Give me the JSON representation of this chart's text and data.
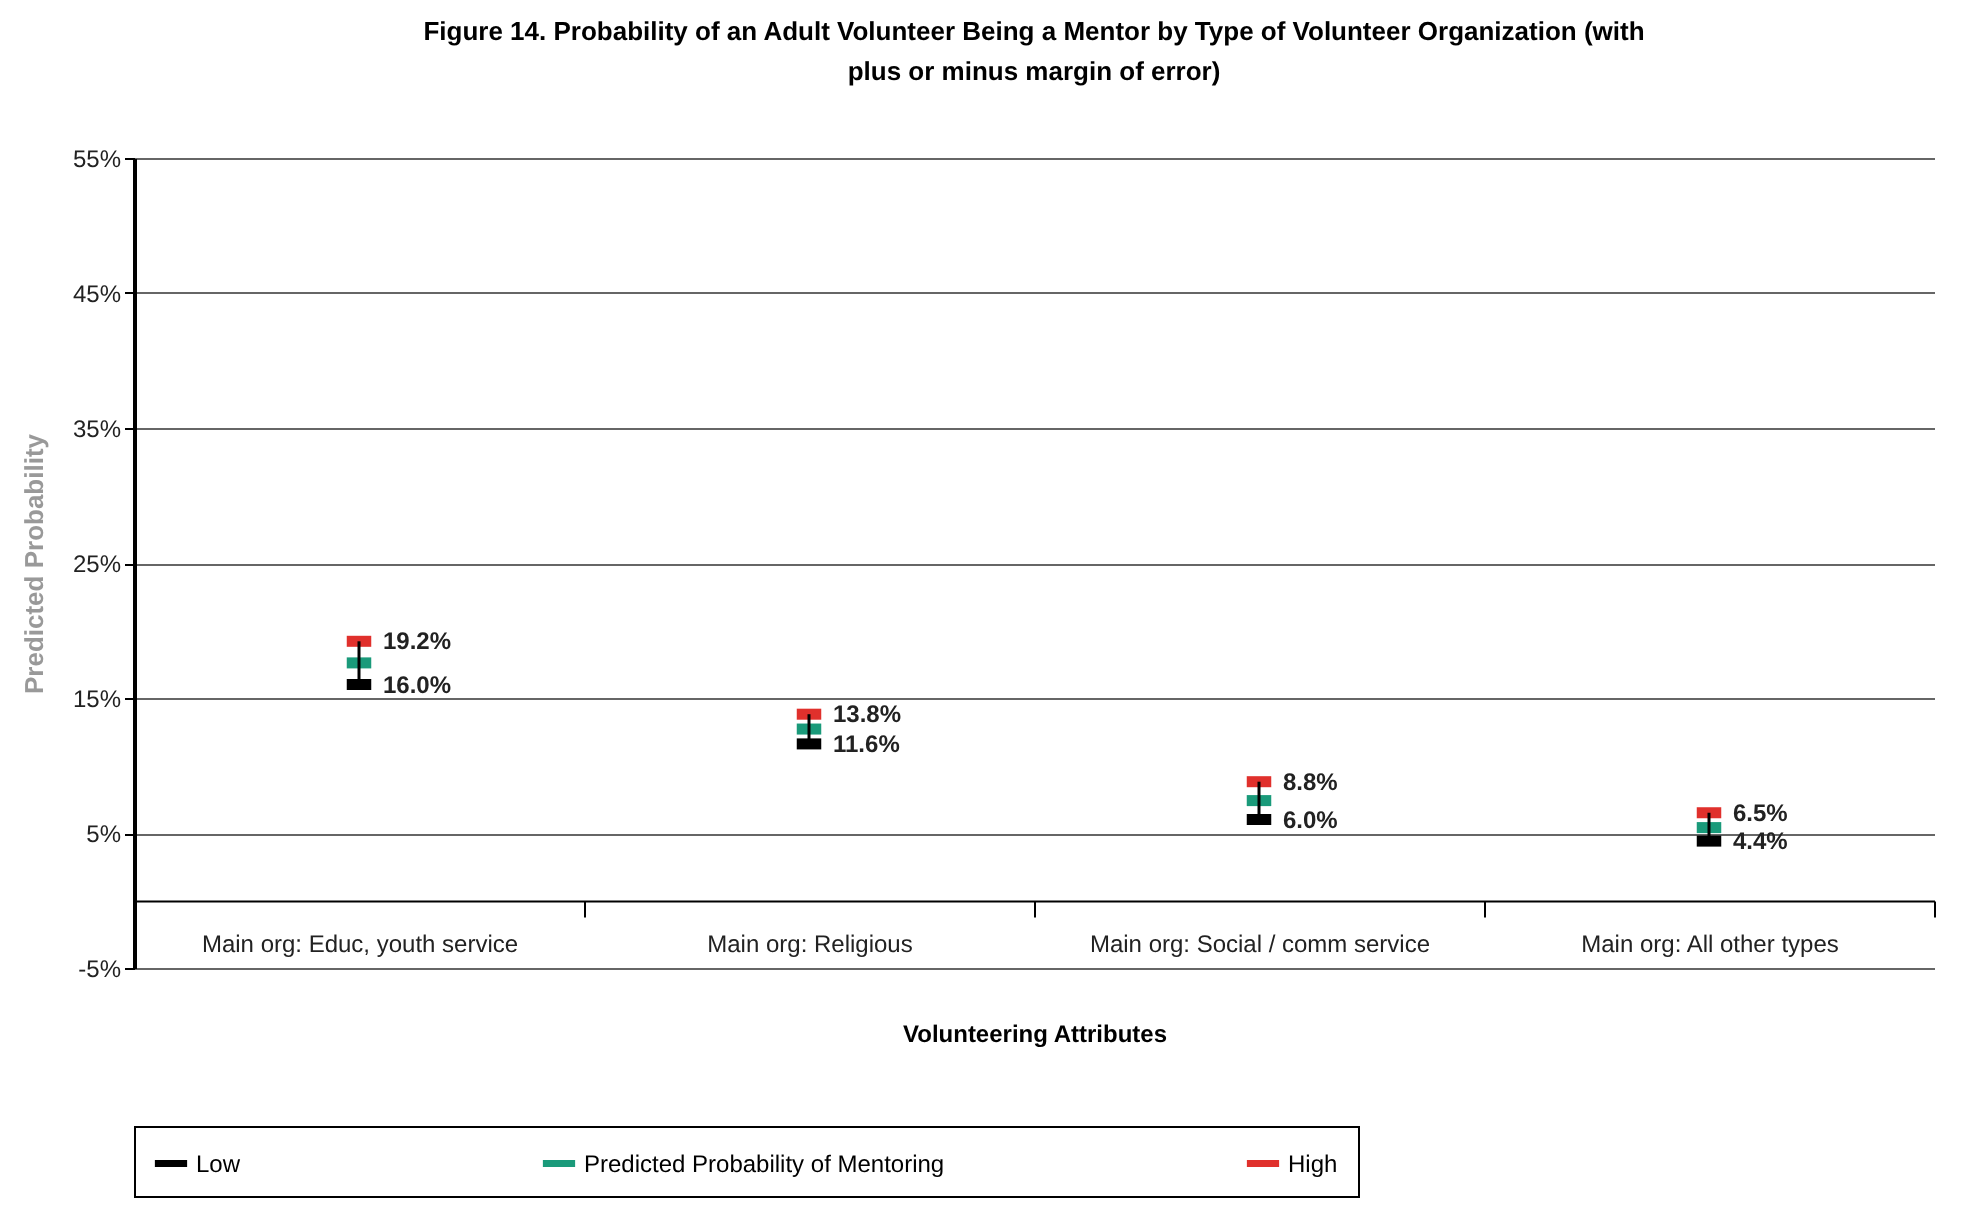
{
  "chart_data": {
    "type": "scatter",
    "title": "Figure 14. Probability of an Adult Volunteer Being a Mentor by Type of Volunteer Organization (with plus or minus margin of error)",
    "xlabel": "Volunteering Attributes",
    "ylabel": "Predicted Probability",
    "categories": [
      "Main org: Educ, youth service",
      "Main org: Religious",
      "Main org: Social / comm service",
      "Main org:  All other types"
    ],
    "series": [
      {
        "name": "Low",
        "color": "#000000",
        "values": [
          16.0,
          11.6,
          6.0,
          4.4
        ],
        "value_labels": [
          "16.0%",
          "11.6%",
          "6.0%",
          "4.4%"
        ]
      },
      {
        "name": "Predicted Probability of Mentoring",
        "color": "#1a9a7a",
        "values": [
          17.6,
          12.7,
          7.4,
          5.4
        ]
      },
      {
        "name": "High",
        "color": "#e0302c",
        "values": [
          19.2,
          13.8,
          8.8,
          6.5
        ],
        "value_labels": [
          "19.2%",
          "13.8%",
          "8.8%",
          "6.5%"
        ]
      }
    ],
    "ylim": [
      -5,
      55
    ],
    "yticks": [
      {
        "value": -5,
        "label": "-5%"
      },
      {
        "value": 5,
        "label": "5%"
      },
      {
        "value": 15,
        "label": "15%"
      },
      {
        "value": 25,
        "label": "25%"
      },
      {
        "value": 35,
        "label": "35%"
      },
      {
        "value": 45,
        "label": "45%"
      },
      {
        "value": 55,
        "label": "55%"
      }
    ],
    "grid": "y",
    "legend": "bottom"
  }
}
